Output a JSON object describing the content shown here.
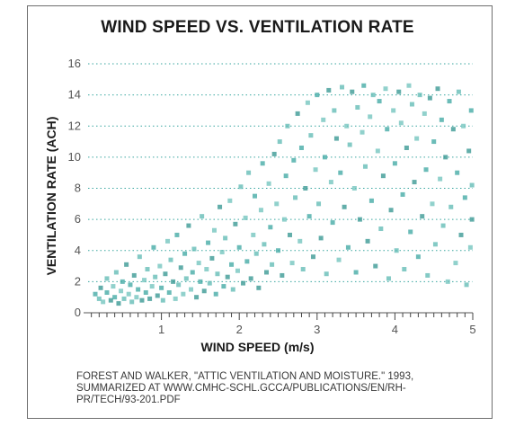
{
  "chart_data": {
    "type": "scatter",
    "title": "WIND SPEED VS. VENTILATION RATE",
    "xlabel": "WIND SPEED (m/s)",
    "ylabel": "VENTILATION RATE (ACH)",
    "xlim": [
      0,
      5
    ],
    "ylim": [
      0,
      16
    ],
    "x_ticks": [
      1,
      2,
      3,
      4,
      5
    ],
    "y_ticks": [
      0,
      2,
      4,
      6,
      8,
      10,
      12,
      14,
      16
    ],
    "grid": "horizontal dotted",
    "marker_color": "#3aa6a0",
    "points": [
      [
        0.15,
        1.2
      ],
      [
        0.2,
        0.9
      ],
      [
        0.22,
        1.6
      ],
      [
        0.25,
        0.7
      ],
      [
        0.3,
        1.3
      ],
      [
        0.3,
        2.2
      ],
      [
        0.35,
        0.8
      ],
      [
        0.38,
        1.7
      ],
      [
        0.4,
        1.0
      ],
      [
        0.42,
        2.6
      ],
      [
        0.45,
        0.6
      ],
      [
        0.48,
        1.4
      ],
      [
        0.5,
        2.0
      ],
      [
        0.52,
        0.9
      ],
      [
        0.55,
        3.1
      ],
      [
        0.58,
        1.2
      ],
      [
        0.6,
        1.8
      ],
      [
        0.62,
        0.7
      ],
      [
        0.65,
        2.4
      ],
      [
        0.68,
        1.0
      ],
      [
        0.7,
        1.5
      ],
      [
        0.72,
        3.6
      ],
      [
        0.75,
        0.8
      ],
      [
        0.78,
        2.1
      ],
      [
        0.8,
        1.3
      ],
      [
        0.82,
        2.8
      ],
      [
        0.85,
        0.9
      ],
      [
        0.88,
        1.7
      ],
      [
        0.9,
        4.2
      ],
      [
        0.92,
        2.3
      ],
      [
        0.95,
        1.1
      ],
      [
        0.98,
        3.0
      ],
      [
        1.0,
        1.6
      ],
      [
        1.02,
        0.8
      ],
      [
        1.05,
        2.5
      ],
      [
        1.08,
        4.6
      ],
      [
        1.1,
        1.3
      ],
      [
        1.12,
        3.4
      ],
      [
        1.15,
        2.0
      ],
      [
        1.18,
        0.9
      ],
      [
        1.2,
        5.0
      ],
      [
        1.22,
        1.8
      ],
      [
        1.25,
        2.9
      ],
      [
        1.28,
        1.2
      ],
      [
        1.3,
        3.8
      ],
      [
        1.32,
        2.2
      ],
      [
        1.35,
        5.6
      ],
      [
        1.38,
        1.5
      ],
      [
        1.4,
        2.6
      ],
      [
        1.42,
        4.1
      ],
      [
        1.45,
        1.0
      ],
      [
        1.48,
        3.2
      ],
      [
        1.5,
        2.0
      ],
      [
        1.52,
        6.2
      ],
      [
        1.55,
        1.4
      ],
      [
        1.58,
        2.8
      ],
      [
        1.6,
        4.5
      ],
      [
        1.62,
        1.9
      ],
      [
        1.65,
        3.5
      ],
      [
        1.68,
        5.3
      ],
      [
        1.7,
        1.2
      ],
      [
        1.72,
        2.5
      ],
      [
        1.75,
        6.8
      ],
      [
        1.78,
        3.9
      ],
      [
        1.8,
        1.7
      ],
      [
        1.82,
        4.8
      ],
      [
        1.85,
        2.3
      ],
      [
        1.88,
        7.2
      ],
      [
        1.9,
        3.1
      ],
      [
        1.92,
        1.5
      ],
      [
        1.95,
        5.7
      ],
      [
        1.98,
        2.7
      ],
      [
        2.0,
        4.2
      ],
      [
        2.02,
        8.1
      ],
      [
        2.05,
        1.9
      ],
      [
        2.08,
        6.1
      ],
      [
        2.1,
        3.3
      ],
      [
        2.12,
        9.0
      ],
      [
        2.15,
        2.2
      ],
      [
        2.18,
        5.0
      ],
      [
        2.2,
        7.5
      ],
      [
        2.22,
        3.8
      ],
      [
        2.25,
        1.6
      ],
      [
        2.28,
        6.6
      ],
      [
        2.3,
        9.6
      ],
      [
        2.32,
        4.4
      ],
      [
        2.35,
        2.6
      ],
      [
        2.38,
        8.3
      ],
      [
        2.4,
        5.5
      ],
      [
        2.42,
        3.1
      ],
      [
        2.45,
        10.2
      ],
      [
        2.48,
        7.0
      ],
      [
        2.5,
        4.0
      ],
      [
        2.52,
        11.0
      ],
      [
        2.55,
        2.4
      ],
      [
        2.58,
        6.0
      ],
      [
        2.6,
        8.8
      ],
      [
        2.62,
        12.0
      ],
      [
        2.65,
        5.0
      ],
      [
        2.68,
        3.2
      ],
      [
        2.7,
        9.8
      ],
      [
        2.72,
        7.4
      ],
      [
        2.75,
        12.8
      ],
      [
        2.78,
        4.6
      ],
      [
        2.8,
        10.6
      ],
      [
        2.82,
        2.8
      ],
      [
        2.85,
        8.0
      ],
      [
        2.88,
        13.5
      ],
      [
        2.9,
        6.2
      ],
      [
        2.92,
        11.4
      ],
      [
        2.95,
        3.6
      ],
      [
        2.98,
        9.2
      ],
      [
        3.0,
        14.0
      ],
      [
        3.02,
        7.0
      ],
      [
        3.05,
        4.8
      ],
      [
        3.08,
        12.4
      ],
      [
        3.1,
        10.0
      ],
      [
        3.12,
        2.5
      ],
      [
        3.15,
        14.3
      ],
      [
        3.18,
        8.4
      ],
      [
        3.2,
        5.8
      ],
      [
        3.22,
        13.0
      ],
      [
        3.25,
        11.2
      ],
      [
        3.28,
        3.4
      ],
      [
        3.3,
        9.0
      ],
      [
        3.32,
        14.5
      ],
      [
        3.35,
        6.8
      ],
      [
        3.38,
        12.0
      ],
      [
        3.4,
        4.2
      ],
      [
        3.42,
        10.8
      ],
      [
        3.45,
        14.2
      ],
      [
        3.48,
        8.0
      ],
      [
        3.5,
        2.6
      ],
      [
        3.52,
        13.2
      ],
      [
        3.55,
        6.0
      ],
      [
        3.58,
        11.6
      ],
      [
        3.6,
        14.6
      ],
      [
        3.62,
        9.4
      ],
      [
        3.65,
        4.6
      ],
      [
        3.68,
        12.6
      ],
      [
        3.7,
        7.2
      ],
      [
        3.72,
        14.0
      ],
      [
        3.75,
        3.0
      ],
      [
        3.78,
        10.4
      ],
      [
        3.8,
        13.6
      ],
      [
        3.82,
        5.4
      ],
      [
        3.85,
        8.8
      ],
      [
        3.88,
        14.4
      ],
      [
        3.9,
        11.8
      ],
      [
        3.92,
        2.2
      ],
      [
        3.95,
        6.6
      ],
      [
        3.98,
        13.0
      ],
      [
        4.0,
        9.6
      ],
      [
        4.02,
        4.0
      ],
      [
        4.05,
        14.2
      ],
      [
        4.08,
        12.2
      ],
      [
        4.1,
        7.6
      ],
      [
        4.12,
        2.8
      ],
      [
        4.15,
        10.6
      ],
      [
        4.18,
        14.6
      ],
      [
        4.2,
        5.2
      ],
      [
        4.22,
        13.4
      ],
      [
        4.25,
        8.4
      ],
      [
        4.28,
        11.2
      ],
      [
        4.3,
        3.6
      ],
      [
        4.32,
        14.0
      ],
      [
        4.35,
        6.2
      ],
      [
        4.38,
        12.8
      ],
      [
        4.4,
        9.2
      ],
      [
        4.42,
        2.4
      ],
      [
        4.45,
        13.8
      ],
      [
        4.48,
        7.0
      ],
      [
        4.5,
        11.0
      ],
      [
        4.52,
        4.4
      ],
      [
        4.55,
        14.4
      ],
      [
        4.58,
        8.6
      ],
      [
        4.6,
        12.4
      ],
      [
        4.62,
        5.6
      ],
      [
        4.65,
        10.0
      ],
      [
        4.68,
        2.0
      ],
      [
        4.7,
        13.6
      ],
      [
        4.72,
        6.8
      ],
      [
        4.75,
        11.8
      ],
      [
        4.78,
        3.2
      ],
      [
        4.8,
        9.0
      ],
      [
        4.82,
        14.2
      ],
      [
        4.85,
        5.0
      ],
      [
        4.88,
        12.0
      ],
      [
        4.9,
        7.4
      ],
      [
        4.92,
        1.8
      ],
      [
        4.95,
        10.4
      ],
      [
        4.97,
        4.2
      ],
      [
        4.98,
        13.0
      ],
      [
        4.99,
        8.2
      ],
      [
        4.99,
        6.0
      ]
    ]
  },
  "source_lines": [
    "FOREST AND WALKER, \"ATTIC VENTILATION AND MOISTURE.\" 1993,",
    "SUMMARIZED AT WWW.CMHC-SCHL.GCCA/PUBLICATIONS/EN/RH-",
    "PR/TECH/93-201.PDF"
  ]
}
